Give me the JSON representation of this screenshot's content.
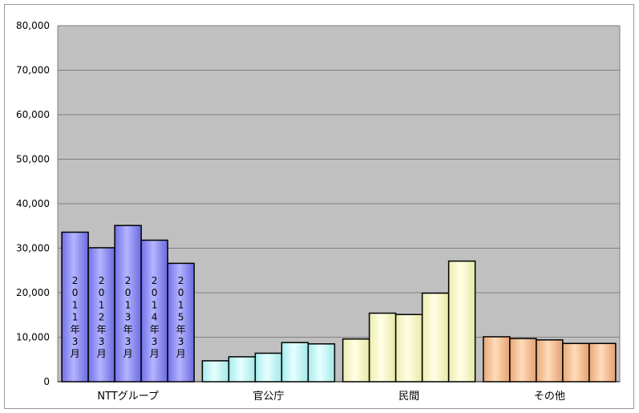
{
  "chart_data": {
    "type": "bar",
    "categories": [
      "NTTグループ",
      "官公庁",
      "民間",
      "その他"
    ],
    "series": [
      {
        "name": "2011年3月",
        "values": [
          33600,
          4700,
          9600,
          10100
        ]
      },
      {
        "name": "2012年3月",
        "values": [
          30100,
          5600,
          15400,
          9700
        ]
      },
      {
        "name": "2013年3月",
        "values": [
          35100,
          6400,
          15100,
          9400
        ]
      },
      {
        "name": "2014年3月",
        "values": [
          31800,
          8800,
          19900,
          8600
        ]
      },
      {
        "name": "2015年3月",
        "values": [
          26600,
          8500,
          27100,
          8600
        ]
      }
    ],
    "ylim": [
      0,
      80000
    ],
    "yticks": [
      0,
      10000,
      20000,
      30000,
      40000,
      50000,
      60000,
      70000,
      80000
    ],
    "ytick_labels": [
      "0",
      "10,000",
      "20,000",
      "30,000",
      "40,000",
      "50,000",
      "60,000",
      "70,000",
      "80,000"
    ],
    "grid": true,
    "plot_background": "#c0c0c0",
    "category_colors": [
      "#9999ff",
      "#ccffff",
      "#ffffcc",
      "#ffcc99"
    ],
    "bar_label_chars": [
      [
        "2",
        "0",
        "1",
        "1",
        "年",
        "3",
        "月"
      ],
      [
        "2",
        "0",
        "1",
        "2",
        "年",
        "3",
        "月"
      ],
      [
        "2",
        "0",
        "1",
        "3",
        "年",
        "3",
        "月"
      ],
      [
        "2",
        "0",
        "1",
        "4",
        "年",
        "3",
        "月"
      ],
      [
        "2",
        "0",
        "1",
        "5",
        "年",
        "3",
        "月"
      ]
    ]
  }
}
